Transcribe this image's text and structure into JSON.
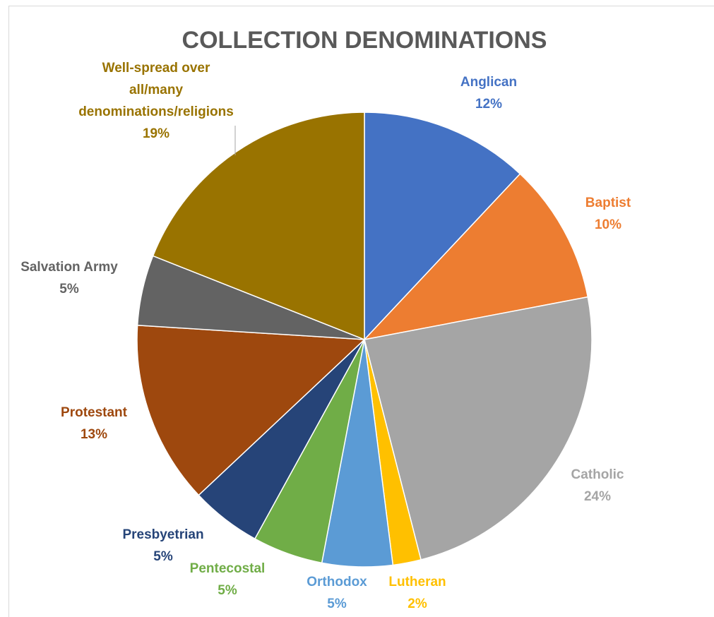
{
  "chart_data": {
    "type": "pie",
    "title": "COLLECTION DENOMINATIONS",
    "start_angle_deg": 0,
    "direction": "clockwise",
    "slices": [
      {
        "name": "Anglican",
        "value": 12,
        "label_lines": [
          "Anglican",
          "12%"
        ],
        "color": "#4472c4"
      },
      {
        "name": "Baptist",
        "value": 10,
        "label_lines": [
          "Baptist",
          "10%"
        ],
        "color": "#ed7d31"
      },
      {
        "name": "Catholic",
        "value": 24,
        "label_lines": [
          "Catholic",
          "24%"
        ],
        "color": "#a5a5a5"
      },
      {
        "name": "Lutheran",
        "value": 2,
        "label_lines": [
          "Lutheran",
          "2%"
        ],
        "color": "#ffc000"
      },
      {
        "name": "Orthodox",
        "value": 5,
        "label_lines": [
          "Orthodox",
          "5%"
        ],
        "color": "#5b9bd5"
      },
      {
        "name": "Pentecostal",
        "value": 5,
        "label_lines": [
          "Pentecostal",
          "5%"
        ],
        "color": "#70ad47"
      },
      {
        "name": "Presbyetrian",
        "value": 5,
        "label_lines": [
          "Presbyetrian",
          "5%"
        ],
        "color": "#264478"
      },
      {
        "name": "Protestant",
        "value": 13,
        "label_lines": [
          "Protestant",
          "13%"
        ],
        "color": "#9e480e"
      },
      {
        "name": "Salvation Army",
        "value": 5,
        "label_lines": [
          "Salvation Army",
          "5%"
        ],
        "color": "#636363"
      },
      {
        "name": "Well-spread over all/many denominations/religions",
        "value": 19,
        "label_lines": [
          "Well-spread over",
          "all/many",
          "denominations/religions",
          "19%"
        ],
        "color": "#997300"
      }
    ],
    "label_colors": {
      "Anglican": "#4472c4",
      "Baptist": "#ed7d31",
      "Catholic": "#a5a5a5",
      "Lutheran": "#ffc000",
      "Orthodox": "#5b9bd5",
      "Pentecostal": "#70ad47",
      "Presbyetrian": "#264478",
      "Protestant": "#9e480e",
      "Salvation Army": "#636363",
      "Well-spread over all/many denominations/religions": "#997300"
    }
  }
}
